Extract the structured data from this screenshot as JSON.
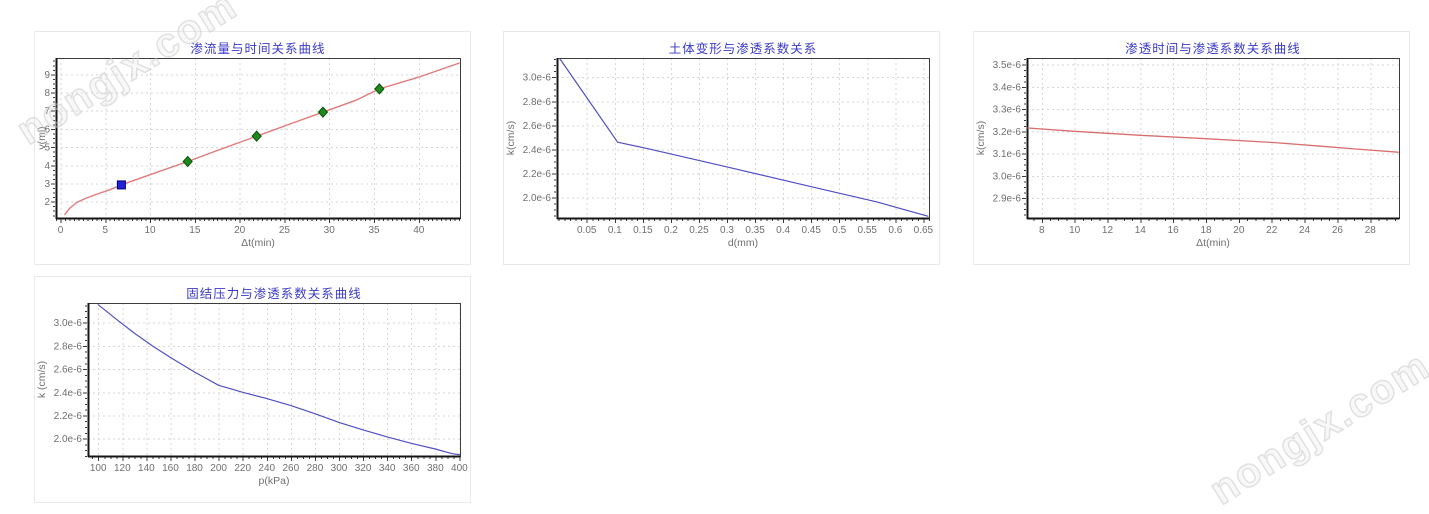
{
  "watermark": {
    "text": "nongjx.com"
  },
  "colors": {
    "title": "#3a3ac6",
    "axis_text": "#6f6f6f",
    "grid": "#d6d6d6",
    "border": "#3c3c3c",
    "axis_thick": "#151515",
    "red_line": "#e07474",
    "blue_line": "#5050c4",
    "green_marker": "#1d8a1d",
    "blue_marker": "#2121d6"
  },
  "chart_data": [
    {
      "type": "line",
      "title": "渗流量与时间关系曲线",
      "xlabel": "Δt(min)",
      "ylabel": "v(ml)",
      "xlim": [
        -0.5,
        44.6
      ],
      "ylim": [
        1.1,
        9.9
      ],
      "xticks": [
        0,
        5,
        10,
        15,
        20,
        25,
        30,
        35,
        40
      ],
      "xtick_labels": [
        "0",
        "5",
        "10",
        "15",
        "20",
        "25",
        "30",
        "35",
        "40"
      ],
      "yticks": [
        2,
        3,
        4,
        5,
        6,
        7,
        8,
        9
      ],
      "ytick_labels": [
        "2",
        "3",
        "4",
        "5",
        "6",
        "7",
        "8",
        "9"
      ],
      "x_minor_step": 0.5,
      "y_minor_step": 0.25,
      "grid": true,
      "series": [
        {
          "color": "#e27979",
          "width": 1.4,
          "x": [
            0.5,
            1.0,
            1.8,
            2.8,
            4.0,
            5.5,
            6.8,
            10,
            14.2,
            18,
            21.9,
            25.5,
            29.3,
            33,
            35.6,
            40,
            44.5
          ],
          "y": [
            1.3,
            1.62,
            1.95,
            2.18,
            2.4,
            2.65,
            2.92,
            3.48,
            4.21,
            4.9,
            5.6,
            6.25,
            6.92,
            7.58,
            8.2,
            8.85,
            9.62
          ]
        }
      ],
      "markers": [
        {
          "x": 6.8,
          "y": 2.92,
          "shape": "square",
          "fill": "#2121d6",
          "stroke": "#000080"
        },
        {
          "x": 14.2,
          "y": 4.21,
          "shape": "diamond",
          "fill": "#1d8a1d",
          "stroke": "#0b4d0b"
        },
        {
          "x": 21.9,
          "y": 5.6,
          "shape": "diamond",
          "fill": "#1d8a1d",
          "stroke": "#0b4d0b"
        },
        {
          "x": 29.3,
          "y": 6.92,
          "shape": "diamond",
          "fill": "#1d8a1d",
          "stroke": "#0b4d0b"
        },
        {
          "x": 35.6,
          "y": 8.2,
          "shape": "diamond",
          "fill": "#1d8a1d",
          "stroke": "#0b4d0b"
        }
      ]
    },
    {
      "type": "line",
      "title": "土体变形与渗透系数关系",
      "xlabel": "d(mm)",
      "ylabel": "k(cm/s)",
      "y_values_scale": "e-6",
      "xlim": [
        -0.003,
        0.66
      ],
      "ylim": [
        1.83,
        3.16
      ],
      "xticks": [
        0.05,
        0.1,
        0.15,
        0.2,
        0.25,
        0.3,
        0.35,
        0.4,
        0.45,
        0.5,
        0.55,
        0.6,
        0.65
      ],
      "xtick_labels": [
        "0.05",
        "0.1",
        "0.15",
        "0.2",
        "0.25",
        "0.3",
        "0.35",
        "0.4",
        "0.45",
        "0.5",
        "0.55",
        "0.6",
        "0.65"
      ],
      "yticks": [
        2.0,
        2.2,
        2.4,
        2.6,
        2.8,
        3.0
      ],
      "ytick_labels": [
        "2.0e-6",
        "2.2e-6",
        "2.4e-6",
        "2.6e-6",
        "2.8e-6",
        "3.0e-6"
      ],
      "x_minor_step": 0.01,
      "y_minor_step": 0.05,
      "grid": true,
      "series": [
        {
          "color": "#5050c4",
          "width": 1.2,
          "x": [
            0.002,
            0.105,
            0.16,
            0.3,
            0.45,
            0.568,
            0.658
          ],
          "y": [
            3.155,
            2.46,
            2.405,
            2.255,
            2.09,
            1.962,
            1.845
          ]
        }
      ],
      "markers": []
    },
    {
      "type": "line",
      "title": "渗透时间与渗透系数关系曲线",
      "xlabel": "Δt(min)",
      "ylabel": "k(cm/s)",
      "y_values_scale": "e-6",
      "xlim": [
        7.1,
        29.75
      ],
      "ylim": [
        2.81,
        3.53
      ],
      "xticks": [
        8,
        10,
        12,
        14,
        16,
        18,
        20,
        22,
        24,
        26,
        28
      ],
      "xtick_labels": [
        "8",
        "10",
        "12",
        "14",
        "16",
        "18",
        "20",
        "22",
        "24",
        "26",
        "28"
      ],
      "yticks": [
        2.9,
        3.0,
        3.1,
        3.2,
        3.3,
        3.4,
        3.5
      ],
      "ytick_labels": [
        "2.9e-6",
        "3.0e-6",
        "3.1e-6",
        "3.2e-6",
        "3.3e-6",
        "3.4e-6",
        "3.5e-6"
      ],
      "x_minor_step": 0.5,
      "y_minor_step": 0.025,
      "grid": true,
      "series": [
        {
          "color": "#d96e6e",
          "width": 1.3,
          "x": [
            7.15,
            10,
            14,
            18,
            22,
            25,
            27,
            29.7
          ],
          "y": [
            3.215,
            3.2,
            3.182,
            3.167,
            3.15,
            3.133,
            3.121,
            3.106
          ]
        }
      ],
      "markers": []
    },
    {
      "type": "line",
      "title": "固结压力与渗透系数关系曲线",
      "xlabel": "p(kPa)",
      "ylabel": "k (cm/s)",
      "y_values_scale": "e-6",
      "xlim": [
        91.5,
        400.5
      ],
      "ylim": [
        1.85,
        3.17
      ],
      "xticks": [
        100,
        120,
        140,
        160,
        180,
        200,
        220,
        240,
        260,
        280,
        300,
        320,
        340,
        360,
        380,
        400
      ],
      "xtick_labels": [
        "100",
        "120",
        "140",
        "160",
        "180",
        "200",
        "220",
        "240",
        "260",
        "280",
        "300",
        "320",
        "340",
        "360",
        "380",
        "400"
      ],
      "yticks": [
        2.0,
        2.2,
        2.4,
        2.6,
        2.8,
        3.0
      ],
      "ytick_labels": [
        "2.0e-6",
        "2.2e-6",
        "2.4e-6",
        "2.6e-6",
        "2.8e-6",
        "3.0e-6"
      ],
      "x_minor_step": 5,
      "y_minor_step": 0.05,
      "grid": true,
      "series": [
        {
          "color": "#5050c4",
          "width": 1.2,
          "x": [
            100,
            115,
            130,
            145,
            160,
            180,
            200,
            220,
            240,
            260,
            280,
            300,
            320,
            340,
            360,
            380,
            394,
            400
          ],
          "y": [
            3.155,
            3.03,
            2.91,
            2.8,
            2.7,
            2.575,
            2.46,
            2.4,
            2.345,
            2.285,
            2.215,
            2.14,
            2.075,
            2.015,
            1.96,
            1.91,
            1.87,
            1.862
          ]
        }
      ],
      "markers": []
    }
  ]
}
